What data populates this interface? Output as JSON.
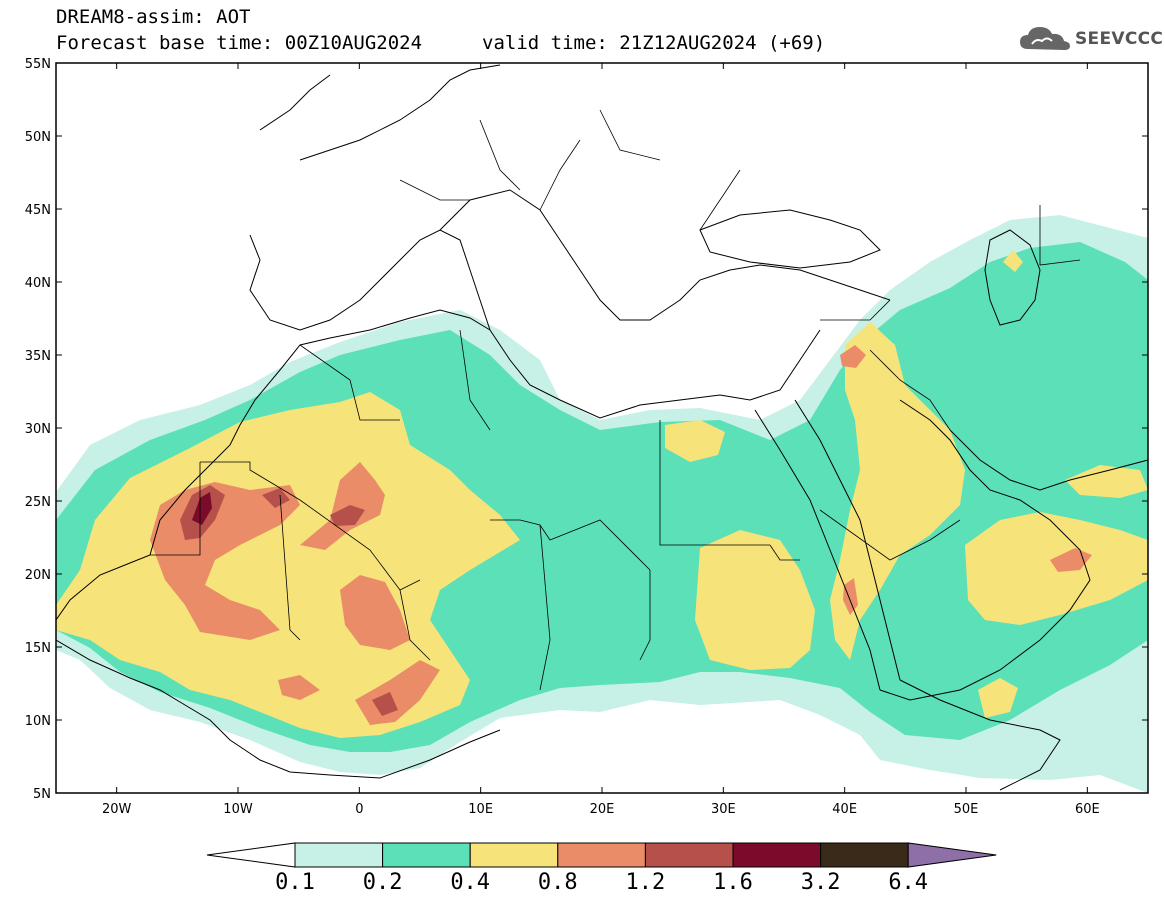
{
  "header": {
    "title": "DREAM8-assim: AOT",
    "base_time": "Forecast base time: 00Z10AUG2024",
    "valid_time": "valid time: 21Z12AUG2024 (+69)"
  },
  "logo": {
    "text": "SEEVCCC",
    "icon": "cloud-icon"
  },
  "map": {
    "lon_range": [
      -25,
      65
    ],
    "lat_range": [
      5,
      55
    ],
    "lat_ticks": [
      {
        "value": 55,
        "label": "55N"
      },
      {
        "value": 50,
        "label": "50N"
      },
      {
        "value": 45,
        "label": "45N"
      },
      {
        "value": 40,
        "label": "40N"
      },
      {
        "value": 35,
        "label": "35N"
      },
      {
        "value": 30,
        "label": "30N"
      },
      {
        "value": 25,
        "label": "25N"
      },
      {
        "value": 20,
        "label": "20N"
      },
      {
        "value": 15,
        "label": "15N"
      },
      {
        "value": 10,
        "label": "10N"
      },
      {
        "value": 5,
        "label": "5N"
      }
    ],
    "lon_ticks": [
      {
        "value": -20,
        "label": "20W"
      },
      {
        "value": -10,
        "label": "10W"
      },
      {
        "value": 0,
        "label": "0"
      },
      {
        "value": 10,
        "label": "10E"
      },
      {
        "value": 20,
        "label": "20E"
      },
      {
        "value": 30,
        "label": "30E"
      },
      {
        "value": 40,
        "label": "40E"
      },
      {
        "value": 50,
        "label": "50E"
      },
      {
        "value": 60,
        "label": "60E"
      }
    ]
  },
  "colorbar": {
    "levels": [
      "0.1",
      "0.2",
      "0.4",
      "0.8",
      "1.2",
      "1.6",
      "3.2",
      "6.4"
    ],
    "colors": [
      "#c7f0e7",
      "#5be0b8",
      "#f6e47a",
      "#ea8c68",
      "#b5514a",
      "#7c0b2b",
      "#3a2a19",
      "#8f6fa8"
    ],
    "under_color": "#ffffff"
  }
}
